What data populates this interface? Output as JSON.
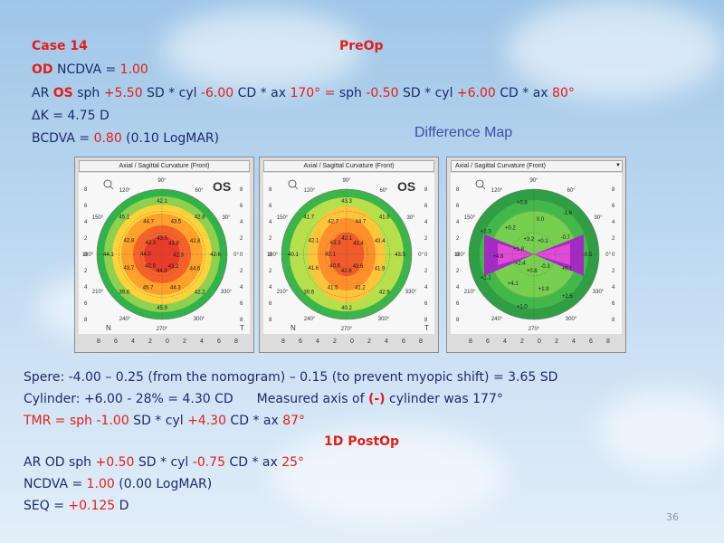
{
  "header": {
    "case": "Case  14",
    "preop": "PreOp",
    "od_label": "OD",
    "ncdva_label": " NCDVA = ",
    "ncdva_value": "1.00",
    "ar_prefix": "AR ",
    "ar_eye": "OS",
    "ar_sph_label": " sph ",
    "ar_sph": "+5.50",
    "ar_sd1": " SD * cyl ",
    "ar_cyl": "-6.00",
    "ar_cd1": " CD * ax ",
    "ar_ax": "170°",
    "ar_eq": " = ",
    "ar_sph2_label": "sph ",
    "ar_sph2": "-0.50",
    "ar_sd2": " SD * cyl ",
    "ar_cyl2": "+6.00",
    "ar_cd2": " CD * ax ",
    "ar_ax2": "80°",
    "dk": "ΔK = 4.75 D",
    "bcdva_label": "BCDVA  = ",
    "bcdva_value": "0.80",
    "bcdva_log": "  (0.10 LogMAR)"
  },
  "difference_map_label": "Difference Map",
  "maps": [
    {
      "header": "Axial / Sagittal Curvature (Front)",
      "eye": "OS",
      "nasal": "N",
      "temporal": "T",
      "values": [
        "42.6",
        "44.6",
        "43.2",
        "42.2",
        "44.3",
        "44.3",
        "45.9",
        "45.7",
        "42.8",
        "39.6",
        "43.7",
        "44.0",
        "44.1",
        "42.8",
        "42.3",
        "45.1",
        "44.7",
        "43.5",
        "42.1",
        "43.5",
        "43.8",
        "42.8",
        "42.8",
        "42.3"
      ],
      "scale": [
        "8",
        "6",
        "4",
        "2",
        "0",
        "2",
        "4",
        "6",
        "8"
      ]
    },
    {
      "header": "Axial / Sagittal Curvature (Front)",
      "eye": "OS",
      "nasal": "N",
      "temporal": "T",
      "values": [
        "43.5",
        "41.9",
        "43.6",
        "42.9",
        "41.2",
        "42.8",
        "40.2",
        "41.5",
        "40.6",
        "39.6",
        "41.6",
        "42.1",
        "40.1",
        "42.1",
        "43.3",
        "41.7",
        "42.7",
        "42.1",
        "43.3",
        "44.7",
        "43.4",
        "41.6",
        "43.4"
      ],
      "scale": [
        "8",
        "6",
        "4",
        "2",
        "0",
        "2",
        "4",
        "6",
        "8"
      ]
    },
    {
      "header": "Axial / Sagittal Curvature (Front)",
      "values": [
        "-0.5",
        "+0.1",
        "-0.3",
        "+2.5",
        "+1.9",
        "+0.6",
        "+1.0",
        "+4.1",
        "+2.4",
        "+1.1",
        "+4.8",
        "+1.8",
        "+2.3",
        "+0.2",
        "+3.2",
        "+0.8",
        "0.0",
        "+0.1",
        "-1.6",
        "-0.7"
      ],
      "scale": [
        "8",
        "6",
        "4",
        "2",
        "0",
        "2",
        "4",
        "6",
        "8"
      ]
    }
  ],
  "axis_labels": [
    "90°",
    "120°",
    "60°",
    "150°",
    "30°",
    "180°",
    "0°",
    "210°",
    "330°",
    "240°",
    "300°",
    "270°"
  ],
  "lower": {
    "line1": "Spere: -4.00 – 0.25 (from the nomogram) – 0.15 (to prevent myopic shift)  = 3.65 SD",
    "line2a": "Cylinder: +6.00 - 28% = 4.30 CD",
    "line2b": "Measured  axis of ",
    "line2c": "(-)",
    "line2d": " cylinder was 177°",
    "tmr_label": "TMR = sph ",
    "tmr_sph": "-1.00",
    "tmr_sd": " SD * cyl ",
    "tmr_cyl": "+4.30",
    "tmr_cd": " CD * ax ",
    "tmr_ax": "87°",
    "postop": "1D PostOp",
    "ar2_prefix": "AR OD sph ",
    "ar2_sph": "+0.50",
    "ar2_sd": " SD * cyl ",
    "ar2_cyl": "-0.75",
    "ar2_cd": " CD * ax ",
    "ar2_ax": "25°",
    "ncdva2_label": "NCDVA = ",
    "ncdva2_value": "1.00",
    "ncdva2_log": " (0.00 LogMAR)",
    "seq_label": "SEQ = ",
    "seq_value": "+0.125",
    "seq_unit": " D"
  },
  "page_number": "36",
  "colors": {
    "red": "#e0201a",
    "navy": "#1c2b6b",
    "difference_title": "#3a4fa0"
  }
}
